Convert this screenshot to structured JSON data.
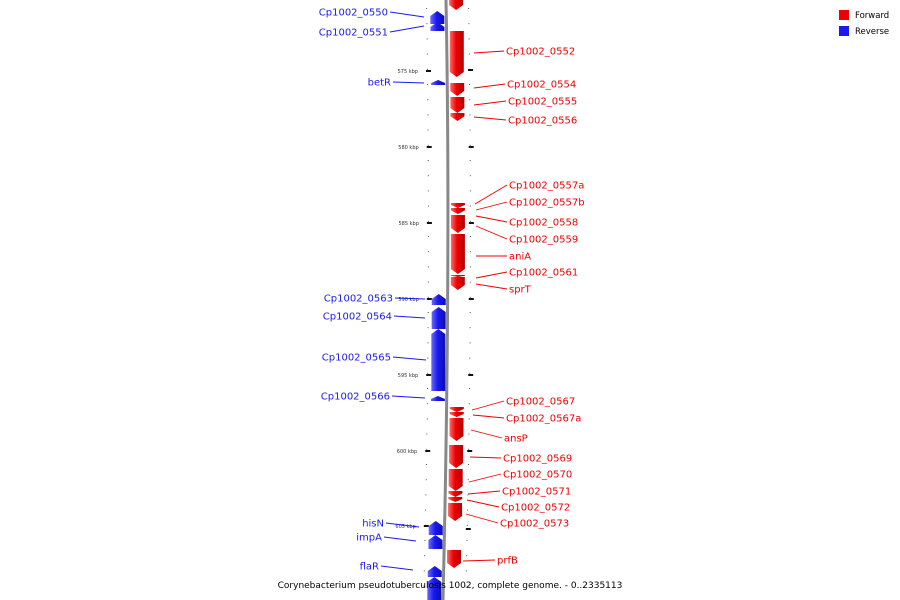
{
  "title": "Corynebacterium pseudotuberculosis 1002, complete genome. - 0..2335113",
  "legend": [
    {
      "label": "Forward",
      "color": "#ee0000"
    },
    {
      "label": "Reverse",
      "color": "#1a1aee"
    }
  ],
  "colors": {
    "forward": "#ee0000",
    "reverse": "#1a1aee",
    "backbone": "#888888"
  },
  "ticks": [
    "575 kbp",
    "580 kbp",
    "585 kbp",
    "590 kbp",
    "595 kbp",
    "600 kbp",
    "605 kbp"
  ],
  "reverse_genes": [
    "Cp1002_0550",
    "Cp1002_0551",
    "betR",
    "Cp1002_0563",
    "Cp1002_0564",
    "Cp1002_0565",
    "Cp1002_0566",
    "hisN",
    "impA",
    "flaR"
  ],
  "forward_genes": [
    "Cp1002_0552",
    "Cp1002_0554",
    "Cp1002_0555",
    "Cp1002_0556",
    "Cp1002_0557a",
    "Cp1002_0557b",
    "Cp1002_0558",
    "Cp1002_0559",
    "aniA",
    "Cp1002_0561",
    "sprT",
    "Cp1002_0567",
    "Cp1002_0567a",
    "ansP",
    "Cp1002_0569",
    "Cp1002_0570",
    "Cp1002_0571",
    "Cp1002_0572",
    "Cp1002_0573",
    "prfB"
  ]
}
